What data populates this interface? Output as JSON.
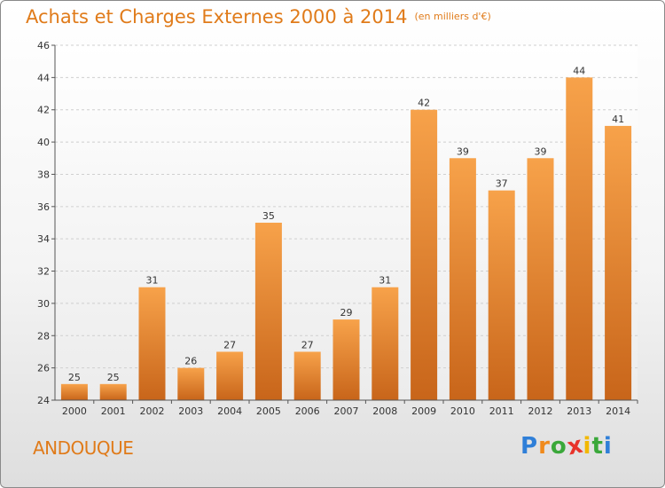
{
  "title": "Achats et Charges Externes 2000 à 2014",
  "subtitle": "(en milliers d'€)",
  "commune": "ANDOUQUE",
  "logo": {
    "letters": [
      "P",
      "r",
      "o",
      "x",
      "i",
      "t",
      "i"
    ],
    "colors": [
      "#2f7fd8",
      "#f08a1c",
      "#3aa83a",
      "#e8332a",
      "#f2b800",
      "#3aa83a",
      "#2f7fd8"
    ]
  },
  "colors": {
    "accent": "#e07b1a",
    "bar_light": "#f7a24a",
    "bar_dark": "#c8651a"
  },
  "chart_data": {
    "type": "bar",
    "categories": [
      "2000",
      "2001",
      "2002",
      "2003",
      "2004",
      "2005",
      "2006",
      "2007",
      "2008",
      "2009",
      "2010",
      "2011",
      "2012",
      "2013",
      "2014"
    ],
    "values": [
      25,
      25,
      31,
      26,
      27,
      35,
      27,
      29,
      31,
      42,
      39,
      37,
      39,
      44,
      41
    ],
    "ylim": [
      24,
      46
    ],
    "yticks": [
      24,
      26,
      28,
      30,
      32,
      34,
      36,
      38,
      40,
      42,
      44,
      46
    ],
    "grid": true,
    "legend": "none"
  }
}
